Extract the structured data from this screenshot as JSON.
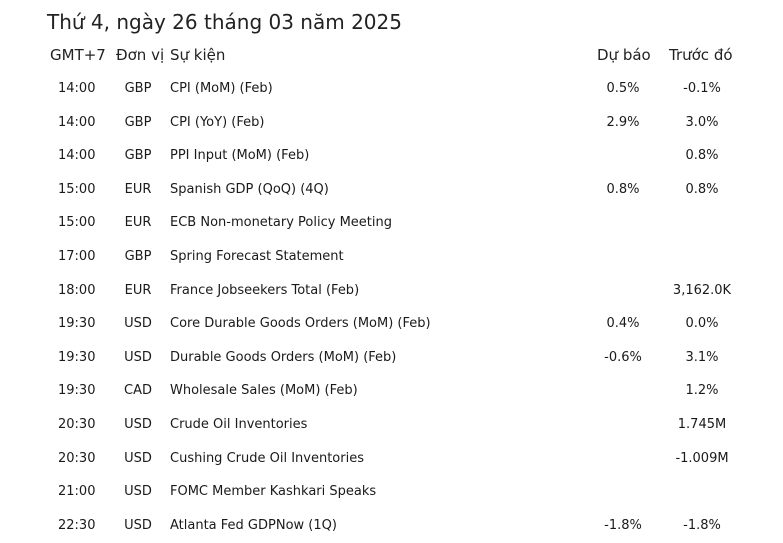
{
  "title": "Thứ 4, ngày 26 tháng 03 năm 2025",
  "headers": {
    "time": "GMT+7",
    "unit": "Đơn vị",
    "event": "Sự kiện",
    "forecast": "Dự báo",
    "previous": "Trước đó"
  },
  "rows": [
    {
      "time": "14:00",
      "unit": "GBP",
      "event": "CPI (MoM) (Feb)",
      "forecast": "0.5%",
      "previous": "-0.1%"
    },
    {
      "time": "14:00",
      "unit": "GBP",
      "event": "CPI (YoY) (Feb)",
      "forecast": "2.9%",
      "previous": "3.0%"
    },
    {
      "time": "14:00",
      "unit": "GBP",
      "event": "PPI Input (MoM) (Feb)",
      "forecast": "",
      "previous": "0.8%"
    },
    {
      "time": "15:00",
      "unit": "EUR",
      "event": "Spanish GDP (QoQ) (4Q)",
      "forecast": "0.8%",
      "previous": "0.8%"
    },
    {
      "time": "15:00",
      "unit": "EUR",
      "event": "ECB Non-monetary Policy Meeting",
      "forecast": "",
      "previous": ""
    },
    {
      "time": "17:00",
      "unit": "GBP",
      "event": "Spring Forecast Statement",
      "forecast": "",
      "previous": ""
    },
    {
      "time": "18:00",
      "unit": "EUR",
      "event": "France Jobseekers Total (Feb)",
      "forecast": "",
      "previous": "3,162.0K"
    },
    {
      "time": "19:30",
      "unit": "USD",
      "event": "Core Durable Goods Orders (MoM) (Feb)",
      "forecast": "0.4%",
      "previous": "0.0%"
    },
    {
      "time": "19:30",
      "unit": "USD",
      "event": "Durable Goods Orders (MoM) (Feb)",
      "forecast": "-0.6%",
      "previous": "3.1%"
    },
    {
      "time": "19:30",
      "unit": "CAD",
      "event": "Wholesale Sales (MoM) (Feb)",
      "forecast": "",
      "previous": "1.2%"
    },
    {
      "time": "20:30",
      "unit": "USD",
      "event": "Crude Oil Inventories",
      "forecast": "",
      "previous": "1.745M"
    },
    {
      "time": "20:30",
      "unit": "USD",
      "event": "Cushing Crude Oil Inventories",
      "forecast": "",
      "previous": "-1.009M"
    },
    {
      "time": "21:00",
      "unit": "USD",
      "event": "FOMC Member Kashkari Speaks",
      "forecast": "",
      "previous": ""
    },
    {
      "time": "22:30",
      "unit": "USD",
      "event": "Atlanta Fed GDPNow (1Q)",
      "forecast": "-1.8%",
      "previous": "-1.8%"
    }
  ]
}
